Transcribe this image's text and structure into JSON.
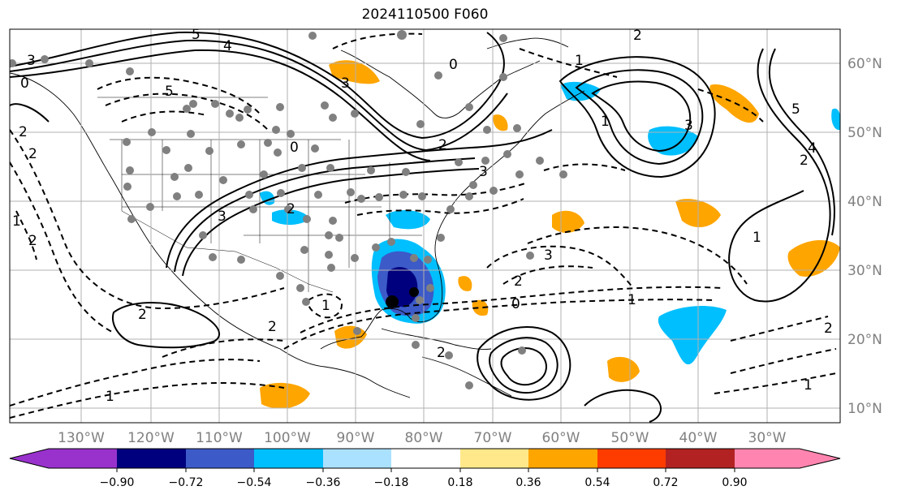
{
  "title": "2024110500 F060",
  "map": {
    "lat_labels": [
      "60°N",
      "50°N",
      "40°N",
      "30°N",
      "20°N",
      "10°N"
    ],
    "lat_values": [
      60,
      50,
      40,
      30,
      20,
      10
    ],
    "lon_labels": [
      "130°W",
      "120°W",
      "110°W",
      "100°W",
      "90°W",
      "80°W",
      "70°W",
      "60°W",
      "50°W",
      "40°W",
      "30°W"
    ],
    "lon_values": [
      -130,
      -120,
      -110,
      -100,
      -90,
      -80,
      -70,
      -60,
      -50,
      -40,
      -30
    ],
    "extent": {
      "lon_min": -135,
      "lon_max": -23,
      "lat_min": 8,
      "lat_max": 65
    },
    "contour_labels": [
      "5",
      "4",
      "5",
      "3",
      "0",
      "2",
      "2",
      "3",
      "1",
      "1",
      "2",
      "2",
      "3",
      "0",
      "2",
      "1",
      "2",
      "5",
      "3",
      "4",
      "2",
      "1",
      "2",
      "0",
      "1",
      "2",
      "1",
      "3",
      "2",
      "0",
      "2",
      "3",
      "1",
      "1",
      "2"
    ],
    "grid": true
  },
  "colorbar": {
    "ticks": [
      "−0.90",
      "−0.72",
      "−0.54",
      "−0.36",
      "−0.18",
      "0.18",
      "0.36",
      "0.54",
      "0.72",
      "0.90"
    ],
    "tick_values": [
      -0.9,
      -0.72,
      -0.54,
      -0.36,
      -0.18,
      0.18,
      0.36,
      0.54,
      0.72,
      0.9
    ],
    "colors": [
      "#00007f",
      "#3c5ac8",
      "#00bfff",
      "#aae1ff",
      "#ffffff",
      "#ffe88a",
      "#ffa500",
      "#ff3c00",
      "#b22222"
    ],
    "under_color": "#9932cc",
    "over_color": "#ff85b0"
  }
}
